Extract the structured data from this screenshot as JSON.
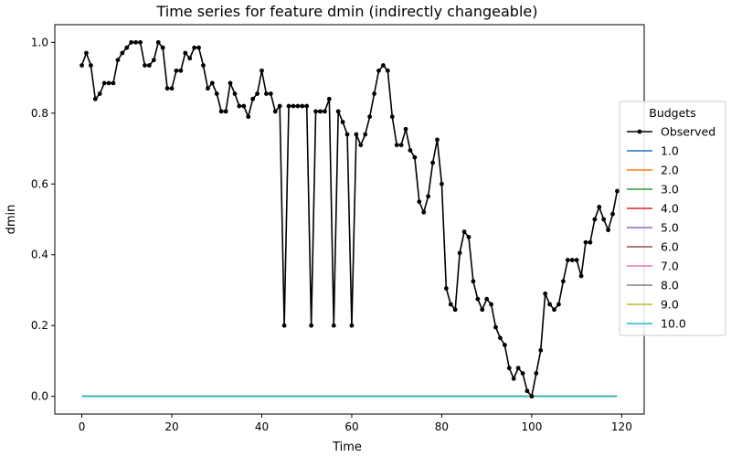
{
  "chart_data": {
    "type": "line",
    "title": "Time series for feature dmin (indirectly changeable)",
    "xlabel": "Time",
    "ylabel": "dmin",
    "xlim": [
      -6,
      125
    ],
    "ylim": [
      -0.05,
      1.05
    ],
    "xticks": [
      0,
      20,
      40,
      60,
      80,
      100,
      120
    ],
    "yticks": [
      0.0,
      0.2,
      0.4,
      0.6,
      0.8,
      1.0
    ],
    "ytick_labels": [
      "0.0",
      "0.2",
      "0.4",
      "0.6",
      "0.8",
      "1.0"
    ],
    "grid": false,
    "legend": {
      "title": "Budgets",
      "placement": "right"
    },
    "x": [
      0,
      1,
      2,
      3,
      4,
      5,
      6,
      7,
      8,
      9,
      10,
      11,
      12,
      13,
      14,
      15,
      16,
      17,
      18,
      19,
      20,
      21,
      22,
      23,
      24,
      25,
      26,
      27,
      28,
      29,
      30,
      31,
      32,
      33,
      34,
      35,
      36,
      37,
      38,
      39,
      40,
      41,
      42,
      43,
      44,
      45,
      46,
      47,
      48,
      49,
      50,
      51,
      52,
      53,
      54,
      55,
      56,
      57,
      58,
      59,
      60,
      61,
      62,
      63,
      64,
      65,
      66,
      67,
      68,
      69,
      70,
      71,
      72,
      73,
      74,
      75,
      76,
      77,
      78,
      79,
      80,
      81,
      82,
      83,
      84,
      85,
      86,
      87,
      88,
      89,
      90,
      91,
      92,
      93,
      94,
      95,
      96,
      97,
      98,
      99,
      100,
      101,
      102,
      103,
      104,
      105,
      106,
      107,
      108,
      109,
      110,
      111,
      112,
      113,
      114,
      115,
      116,
      117,
      118,
      119
    ],
    "observed": {
      "name": "Observed",
      "color": "#000000",
      "values": [
        0.935,
        0.97,
        0.935,
        0.84,
        0.855,
        0.885,
        0.885,
        0.885,
        0.95,
        0.97,
        0.985,
        1.0,
        1.0,
        1.0,
        0.935,
        0.935,
        0.95,
        1.0,
        0.985,
        0.87,
        0.87,
        0.92,
        0.92,
        0.97,
        0.955,
        0.985,
        0.985,
        0.935,
        0.87,
        0.885,
        0.855,
        0.805,
        0.805,
        0.885,
        0.855,
        0.82,
        0.82,
        0.79,
        0.84,
        0.855,
        0.92,
        0.855,
        0.855,
        0.805,
        0.82,
        0.2,
        0.82,
        0.82,
        0.82,
        0.82,
        0.82,
        0.2,
        0.805,
        0.805,
        0.805,
        0.84,
        0.2,
        0.805,
        0.775,
        0.74,
        0.2,
        0.74,
        0.71,
        0.74,
        0.79,
        0.855,
        0.92,
        0.935,
        0.92,
        0.79,
        0.71,
        0.71,
        0.755,
        0.695,
        0.675,
        0.55,
        0.52,
        0.565,
        0.66,
        0.725,
        0.6,
        0.305,
        0.26,
        0.245,
        0.405,
        0.465,
        0.45,
        0.325,
        0.275,
        0.245,
        0.275,
        0.26,
        0.195,
        0.165,
        0.145,
        0.08,
        0.05,
        0.08,
        0.065,
        0.015,
        0.0,
        0.065,
        0.13,
        0.29,
        0.26,
        0.245,
        0.26,
        0.325,
        0.385,
        0.385,
        0.385,
        0.34,
        0.435,
        0.435,
        0.5,
        0.535,
        0.5,
        0.47,
        0.515,
        0.58
      ]
    },
    "series": [
      {
        "name": "1.0",
        "color": "#1f77b4",
        "values_const": 0.0
      },
      {
        "name": "2.0",
        "color": "#ff7f0e",
        "values_const": 0.0
      },
      {
        "name": "3.0",
        "color": "#2ca02c",
        "values_const": 0.0
      },
      {
        "name": "4.0",
        "color": "#d62728",
        "values_const": 0.0
      },
      {
        "name": "5.0",
        "color": "#9467bd",
        "values_const": 0.0
      },
      {
        "name": "6.0",
        "color": "#8c564b",
        "values_const": 0.0
      },
      {
        "name": "7.0",
        "color": "#e377c2",
        "values_const": 0.0
      },
      {
        "name": "8.0",
        "color": "#7f7f7f",
        "values_const": 0.0
      },
      {
        "name": "9.0",
        "color": "#bcbd22",
        "values_const": 0.0
      },
      {
        "name": "10.0",
        "color": "#17becf",
        "values_const": 0.0
      }
    ]
  }
}
